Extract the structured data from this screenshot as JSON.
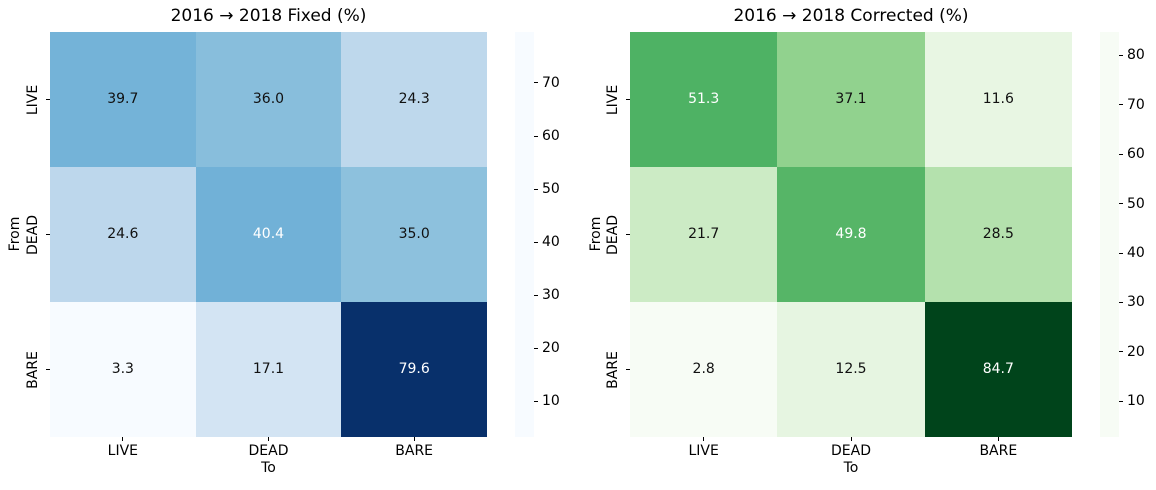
{
  "figure": {
    "background": "#ffffff",
    "text_color": "#000000"
  },
  "chart_data": [
    {
      "type": "heatmap",
      "title": "2016 → 2018 Fixed (%)",
      "xlabel": "To",
      "ylabel": "From",
      "x_categories": [
        "LIVE",
        "DEAD",
        "BARE"
      ],
      "y_categories": [
        "LIVE",
        "DEAD",
        "BARE"
      ],
      "values": [
        [
          39.7,
          36.0,
          24.3
        ],
        [
          24.6,
          40.4,
          35.0
        ],
        [
          3.3,
          17.1,
          79.6
        ]
      ],
      "colormap": "Blues",
      "vmin": 3.3,
      "vmax": 79.6,
      "colorbar_ticks": [
        10,
        20,
        30,
        40,
        50,
        60,
        70
      ],
      "grid": false,
      "legend": "colorbar-right",
      "annotation_decimals": 1
    },
    {
      "type": "heatmap",
      "title": "2016 → 2018 Corrected (%)",
      "xlabel": "To",
      "ylabel": "From",
      "x_categories": [
        "LIVE",
        "DEAD",
        "BARE"
      ],
      "y_categories": [
        "LIVE",
        "DEAD",
        "BARE"
      ],
      "values": [
        [
          51.3,
          37.1,
          11.6
        ],
        [
          21.7,
          49.8,
          28.5
        ],
        [
          2.8,
          12.5,
          84.7
        ]
      ],
      "colormap": "Greens",
      "vmin": 2.8,
      "vmax": 84.7,
      "colorbar_ticks": [
        10,
        20,
        30,
        40,
        50,
        60,
        70,
        80
      ],
      "grid": false,
      "legend": "colorbar-right",
      "annotation_decimals": 1
    }
  ],
  "colormaps": {
    "Blues": [
      "#f7fbff",
      "#deebf7",
      "#c6dbef",
      "#9ecae1",
      "#6baed6",
      "#4292c6",
      "#2171b5",
      "#08519c",
      "#08306b"
    ],
    "Greens": [
      "#f7fcf5",
      "#e5f5e0",
      "#c7e9c0",
      "#a1d99b",
      "#74c476",
      "#41ab5d",
      "#238b45",
      "#006d2c",
      "#00441b"
    ]
  },
  "annotation_text": {
    "dark": "#111111",
    "light": "#ffffff"
  }
}
